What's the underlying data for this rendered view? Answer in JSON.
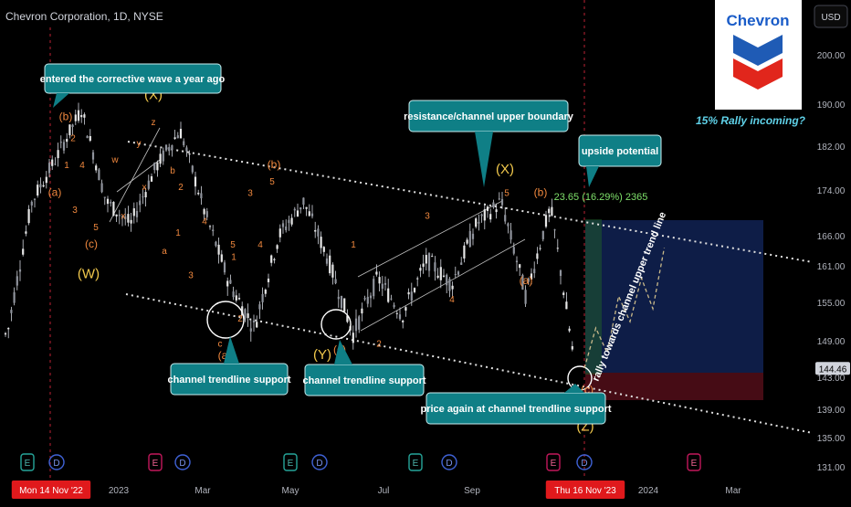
{
  "header": {
    "symbol": "Chevron Corporation, 1D, NYSE"
  },
  "logo": {
    "text": "Chevron"
  },
  "currency_button": {
    "label": "USD"
  },
  "colors": {
    "background": "#000000",
    "up_candle": "#d1d4dc",
    "down_candle": "#d1d4dc",
    "callout_bg": "#0f7f86",
    "wave_label": "#f0883e",
    "wave_label_major": "#f2c94c",
    "grid_text": "#b2b5be",
    "red_tag": "#e0191c",
    "target_zone": "#0f1f4b",
    "stop_zone": "#4a0d16",
    "annotation_green": "#7ee06a",
    "dashed_path": "#c9b98a"
  },
  "chart_data": {
    "type": "candlestick",
    "title": "Chevron Corporation, 1D, NYSE",
    "y_axis": {
      "range": [
        131,
        207
      ],
      "ticks": [
        200,
        190,
        182,
        174,
        166,
        161,
        155,
        149,
        143,
        139,
        135,
        131
      ],
      "tick_labels": [
        "200.00",
        "190.00",
        "182.00",
        "174.00",
        "166.00",
        "161.00",
        "155.00",
        "149.00",
        "143.00",
        "139.00",
        "135.00",
        "131.00"
      ],
      "current_price": 144.46,
      "current_price_label": "144.46"
    },
    "x_axis": {
      "ticks": [
        "Mon 14 Nov '22",
        "2023",
        "Mar",
        "May",
        "Jul",
        "Sep",
        "Thu 16 Nov '23",
        "2024",
        "Mar"
      ],
      "highlighted_ticks": [
        "Mon 14 Nov '22",
        "Thu 16 Nov '23"
      ]
    },
    "price_path": [
      {
        "date": "Aug 2022",
        "price": 150
      },
      {
        "date": "Sep 2022",
        "price": 172
      },
      {
        "date": "Oct 2022",
        "price": 180
      },
      {
        "date": "Nov 14 2022",
        "price": 189
      },
      {
        "date": "Dec 2022",
        "price": 172
      },
      {
        "date": "Dec 2022",
        "price": 168
      },
      {
        "date": "Jan 2023",
        "price": 178
      },
      {
        "date": "Jan 2023",
        "price": 185
      },
      {
        "date": "Feb 2023",
        "price": 170
      },
      {
        "date": "Mar 2023",
        "price": 158
      },
      {
        "date": "Mar 2023",
        "price": 151
      },
      {
        "date": "Apr 2023",
        "price": 166
      },
      {
        "date": "Apr 2023",
        "price": 172
      },
      {
        "date": "May 2023",
        "price": 162
      },
      {
        "date": "Jun 2023",
        "price": 150
      },
      {
        "date": "Jun 2023",
        "price": 159
      },
      {
        "date": "Jul 2023",
        "price": 153
      },
      {
        "date": "Jul 2023",
        "price": 162
      },
      {
        "date": "Aug 2023",
        "price": 158
      },
      {
        "date": "Sep 2023",
        "price": 168
      },
      {
        "date": "Sep 2023",
        "price": 172
      },
      {
        "date": "Oct 2023",
        "price": 156
      },
      {
        "date": "Oct 2023",
        "price": 171
      },
      {
        "date": "Nov 2023",
        "price": 144.5
      }
    ],
    "channel": {
      "upper": {
        "from": {
          "date": "Nov 2022",
          "price": 184
        },
        "to": {
          "date": "Apr 2024",
          "price": 161
        }
      },
      "lower": {
        "from": {
          "date": "Dec 2022",
          "price": 154
        },
        "to": {
          "date": "Apr 2024",
          "price": 136
        }
      }
    },
    "wave_labels": [
      {
        "text": "(b)",
        "date": "Nov 2022",
        "price": 187,
        "major": false
      },
      {
        "text": "2",
        "date": "Nov 2022",
        "price": 183,
        "major": false
      },
      {
        "text": "1",
        "date": "Nov 2022",
        "price": 178,
        "major": false
      },
      {
        "text": "4",
        "date": "Dec 2022",
        "price": 178,
        "major": false
      },
      {
        "text": "(a)",
        "date": "Oct 2022",
        "price": 173,
        "major": false
      },
      {
        "text": "3",
        "date": "Oct 2022",
        "price": 170,
        "major": false
      },
      {
        "text": "5",
        "date": "Dec 2022",
        "price": 167,
        "major": false
      },
      {
        "text": "(c)",
        "date": "Dec 2022",
        "price": 164,
        "major": false
      },
      {
        "text": "(W)",
        "date": "Dec 2022",
        "price": 159,
        "major": true
      },
      {
        "text": "w",
        "date": "Jan 2023",
        "price": 179,
        "major": false
      },
      {
        "text": "x",
        "date": "Jan 2023",
        "price": 169,
        "major": false
      },
      {
        "text": "y",
        "date": "Jan 2023",
        "price": 182,
        "major": false
      },
      {
        "text": "x",
        "date": "Feb 2023",
        "price": 174,
        "major": false
      },
      {
        "text": "z",
        "date": "Feb 2023",
        "price": 186,
        "major": false
      },
      {
        "text": "(X)",
        "date": "Feb 2023",
        "price": 191,
        "major": true
      },
      {
        "text": "b",
        "date": "Feb 2023",
        "price": 177,
        "major": false
      },
      {
        "text": "2",
        "date": "Feb 2023",
        "price": 174,
        "major": false
      },
      {
        "text": "4",
        "date": "Mar 2023",
        "price": 168,
        "major": false
      },
      {
        "text": "1",
        "date": "Feb 2023",
        "price": 166,
        "major": false
      },
      {
        "text": "a",
        "date": "Feb 2023",
        "price": 163,
        "major": false
      },
      {
        "text": "3",
        "date": "Mar 2023",
        "price": 159,
        "major": false
      },
      {
        "text": "5",
        "date": "Mar 2023",
        "price": 164,
        "major": false
      },
      {
        "text": "c",
        "date": "Mar 2023",
        "price": 148,
        "major": false
      },
      {
        "text": "(a)",
        "date": "Mar 2023",
        "price": 146,
        "major": false
      },
      {
        "text": "1",
        "date": "Apr 2023",
        "price": 162,
        "major": false
      },
      {
        "text": "2",
        "date": "Apr 2023",
        "price": 152,
        "major": false
      },
      {
        "text": "3",
        "date": "Apr 2023",
        "price": 173,
        "major": false
      },
      {
        "text": "4",
        "date": "Apr 2023",
        "price": 164,
        "major": false
      },
      {
        "text": "5",
        "date": "Apr 2023",
        "price": 175,
        "major": false
      },
      {
        "text": "(b)",
        "date": "Apr 2023",
        "price": 178,
        "major": false
      },
      {
        "text": "(Y)",
        "date": "Jun 2023",
        "price": 146,
        "major": true
      },
      {
        "text": "(c)",
        "date": "Jun 2023",
        "price": 147,
        "major": false
      },
      {
        "text": "1",
        "date": "Jul 2023",
        "price": 164,
        "major": false
      },
      {
        "text": "2",
        "date": "Jul 2023",
        "price": 148,
        "major": false
      },
      {
        "text": "3",
        "date": "Aug 2023",
        "price": 169,
        "major": false
      },
      {
        "text": "4",
        "date": "Aug 2023",
        "price": 155,
        "major": false
      },
      {
        "text": "5",
        "date": "Sep 2023",
        "price": 173,
        "major": false
      },
      {
        "text": "(X)",
        "date": "Sep 2023",
        "price": 177,
        "major": true
      },
      {
        "text": "(b)",
        "date": "Oct 2023",
        "price": 173,
        "major": false
      },
      {
        "text": "(a)",
        "date": "Oct 2023",
        "price": 158,
        "major": false
      },
      {
        "text": "(c)",
        "date": "Nov 2023",
        "price": 141,
        "major": false
      },
      {
        "text": "(Z)",
        "date": "Nov 2023",
        "price": 136,
        "major": true
      }
    ],
    "callouts": [
      "entered the corrective wave a year ago",
      "resistance/channel upper boundary",
      "upside potential",
      "channel trendline support",
      "channel trendline support",
      "price again at channel trendline support"
    ],
    "annotations": {
      "rally_headline": "15% Rally incoming?",
      "rotated_note": "rally towards channel upper trend line",
      "measure_label": "23.65 (16.29%) 2365"
    },
    "risk_reward": {
      "entry": 144.5,
      "target": 168.1,
      "stop": 140.5
    },
    "projected_path": [
      {
        "price": 144.5
      },
      {
        "price": 151
      },
      {
        "price": 147
      },
      {
        "price": 156
      },
      {
        "price": 152
      },
      {
        "price": 159
      },
      {
        "price": 154
      },
      {
        "price": 164
      }
    ],
    "events": [
      "E",
      "D",
      "E",
      "D",
      "E",
      "D",
      "E",
      "D",
      "E",
      "D",
      "E"
    ]
  }
}
